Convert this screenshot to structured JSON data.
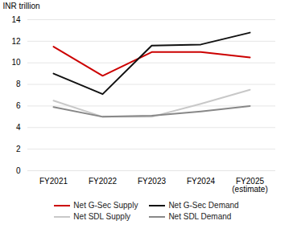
{
  "chart_data": {
    "type": "line",
    "categories": [
      "FY2021",
      "FY2022",
      "FY2023",
      "FY2024",
      "FY2025\n(estimate)"
    ],
    "series": [
      {
        "name": "Net G-Sec Supply",
        "color": "#cc0000",
        "values": [
          11.5,
          8.8,
          11.0,
          11.0,
          10.5
        ]
      },
      {
        "name": "Net G-Sec Demand",
        "color": "#111111",
        "values": [
          9.0,
          7.1,
          11.6,
          11.7,
          12.8
        ]
      },
      {
        "name": "Net SDL Supply",
        "color": "#c8c8c8",
        "values": [
          6.5,
          5.0,
          5.0,
          6.2,
          7.5
        ]
      },
      {
        "name": "Net SDL Demand",
        "color": "#888888",
        "values": [
          5.9,
          5.0,
          5.1,
          5.5,
          6.0
        ]
      }
    ],
    "ylabel": "INR trillion",
    "ylim": [
      0,
      14
    ],
    "yticks": [
      0,
      2,
      4,
      6,
      8,
      10,
      12,
      14
    ],
    "grid": true,
    "legend": "bottom"
  }
}
